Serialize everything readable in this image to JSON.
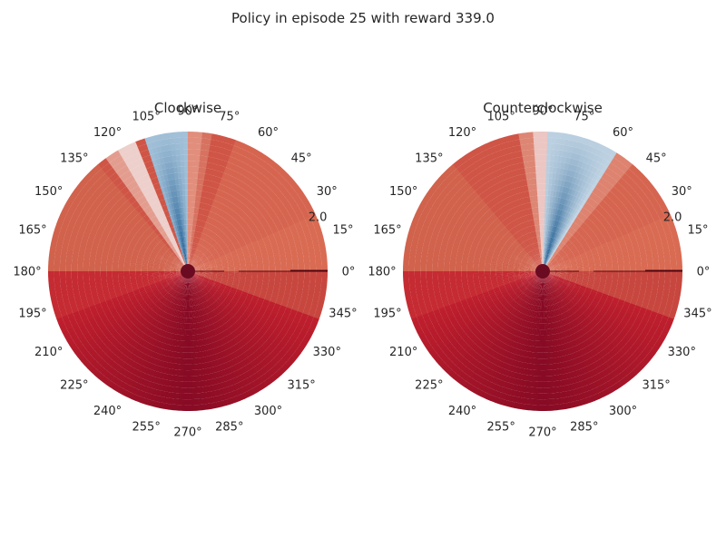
{
  "figure": {
    "suptitle": "Policy in episode 25 with reward 339.0"
  },
  "chart_data": [
    {
      "type": "heatmap",
      "projection": "polar",
      "title": "Clockwise",
      "angle_tick_labels": [
        "0°",
        "15°",
        "30°",
        "45°",
        "60°",
        "75°",
        "90°",
        "105°",
        "120°",
        "135°",
        "150°",
        "165°",
        "180°",
        "195°",
        "210°",
        "225°",
        "240°",
        "255°",
        "270°",
        "285°",
        "300°",
        "315°",
        "330°",
        "345°"
      ],
      "radial_tick_labels": [
        "2.0"
      ],
      "radial_range": [
        0,
        2.0
      ],
      "grid": false,
      "colormap": "RdBu",
      "blue_band_degrees": [
        95,
        108
      ],
      "color_notes": "mostly red; pale band near 118-125 deg; deep blue wedge centered near 97-100 deg close to center; darkest red around 270 deg"
    },
    {
      "type": "heatmap",
      "projection": "polar",
      "title": "Counterclockwise",
      "angle_tick_labels": [
        "0°",
        "15°",
        "30°",
        "45°",
        "60°",
        "75°",
        "90°",
        "105°",
        "120°",
        "135°",
        "150°",
        "165°",
        "180°",
        "195°",
        "210°",
        "225°",
        "240°",
        "255°",
        "270°",
        "285°",
        "300°",
        "315°",
        "330°",
        "345°"
      ],
      "radial_tick_labels": [
        "2.0"
      ],
      "radial_range": [
        0,
        2.0
      ],
      "grid": false,
      "colormap": "RdBu",
      "blue_band_degrees": [
        62,
        84
      ],
      "color_notes": "mostly red; blue wedge between roughly 60 and 85 deg, deepest near center; light band near 88-92 deg; darkest red around 270 deg"
    }
  ]
}
